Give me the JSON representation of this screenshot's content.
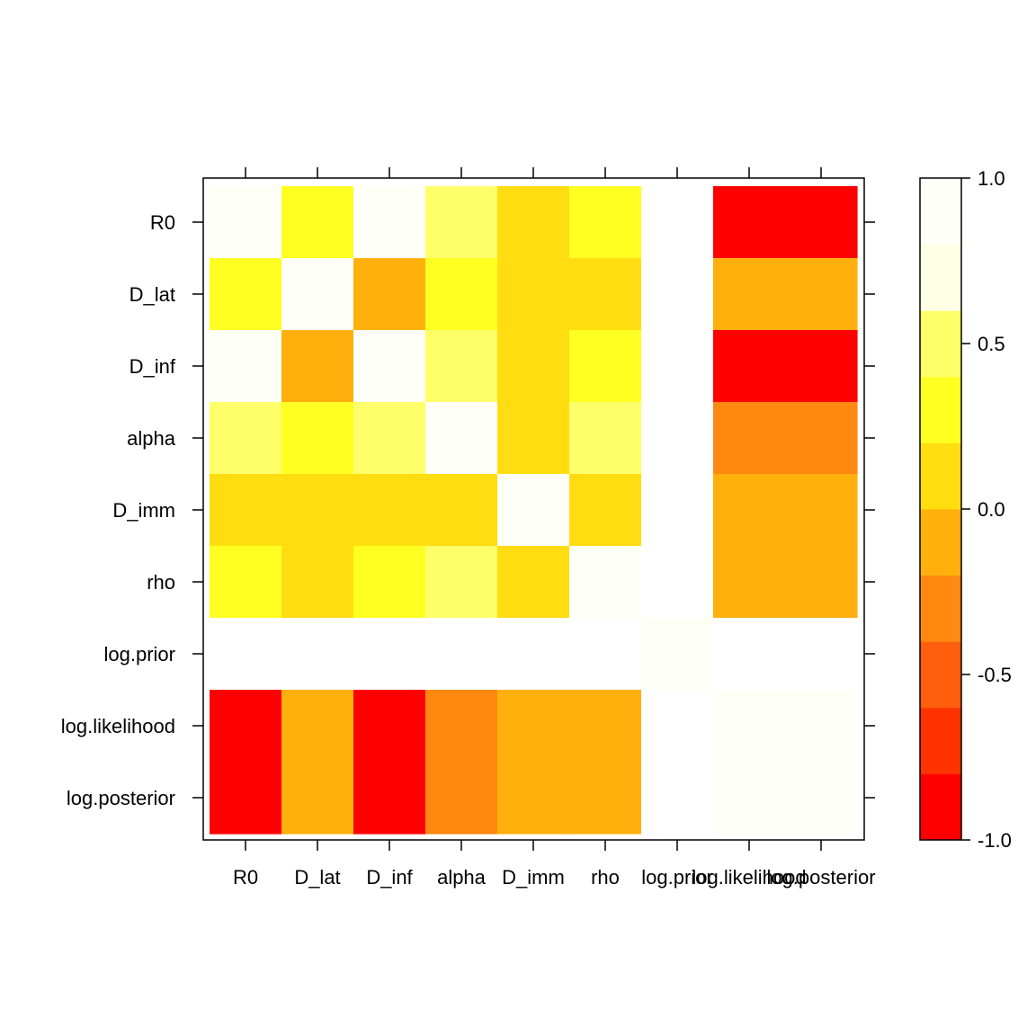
{
  "chart_data": {
    "type": "heatmap",
    "title": "",
    "xlabel": "",
    "ylabel": "",
    "x_labels": [
      "R0",
      "D_lat",
      "D_inf",
      "alpha",
      "D_imm",
      "rho",
      "log.prior",
      "log.likelihood",
      "log.posterior"
    ],
    "y_labels": [
      "R0",
      "D_lat",
      "D_inf",
      "alpha",
      "D_imm",
      "rho",
      "log.prior",
      "log.likelihood",
      "log.posterior"
    ],
    "values": [
      [
        1.0,
        0.3,
        1.0,
        0.5,
        0.1,
        0.3,
        null,
        -0.9,
        -0.9
      ],
      [
        0.3,
        1.0,
        -0.1,
        0.3,
        0.1,
        0.1,
        null,
        -0.1,
        -0.1
      ],
      [
        1.0,
        -0.1,
        1.0,
        0.5,
        0.1,
        0.3,
        null,
        -0.9,
        -0.9
      ],
      [
        0.5,
        0.3,
        0.5,
        1.0,
        0.1,
        0.5,
        null,
        -0.3,
        -0.3
      ],
      [
        0.1,
        0.1,
        0.1,
        0.1,
        1.0,
        0.1,
        null,
        -0.1,
        -0.1
      ],
      [
        0.3,
        0.1,
        0.3,
        0.5,
        0.1,
        1.0,
        null,
        -0.1,
        -0.1
      ],
      [
        null,
        null,
        null,
        null,
        null,
        null,
        1.0,
        null,
        null
      ],
      [
        -0.9,
        -0.1,
        -0.9,
        -0.3,
        -0.1,
        -0.1,
        null,
        1.0,
        1.0
      ],
      [
        -0.9,
        -0.1,
        -0.9,
        -0.3,
        -0.1,
        -0.1,
        null,
        1.0,
        1.0
      ]
    ],
    "zlim": [
      -1.0,
      1.0
    ],
    "colorkey": {
      "breaks": [
        -1.0,
        -0.8,
        -0.6,
        -0.4,
        -0.2,
        0.0,
        0.2,
        0.4,
        0.6,
        0.8,
        1.0
      ],
      "colors": [
        "#FF0000",
        "#FF3300",
        "#FF5F0D",
        "#FF8811",
        "#FFB00D",
        "#FFDD10",
        "#FFFF22",
        "#FFFF6A",
        "#FEFFE4",
        "#FEFFF6"
      ],
      "tick_values": [
        -1.0,
        -0.5,
        0.0,
        0.5,
        1.0
      ],
      "tick_labels": [
        "-1.0",
        "-0.5",
        "0.0",
        "0.5",
        "1.0"
      ]
    },
    "na_color": "#FFFFFF",
    "grid": false,
    "legend": "right"
  }
}
